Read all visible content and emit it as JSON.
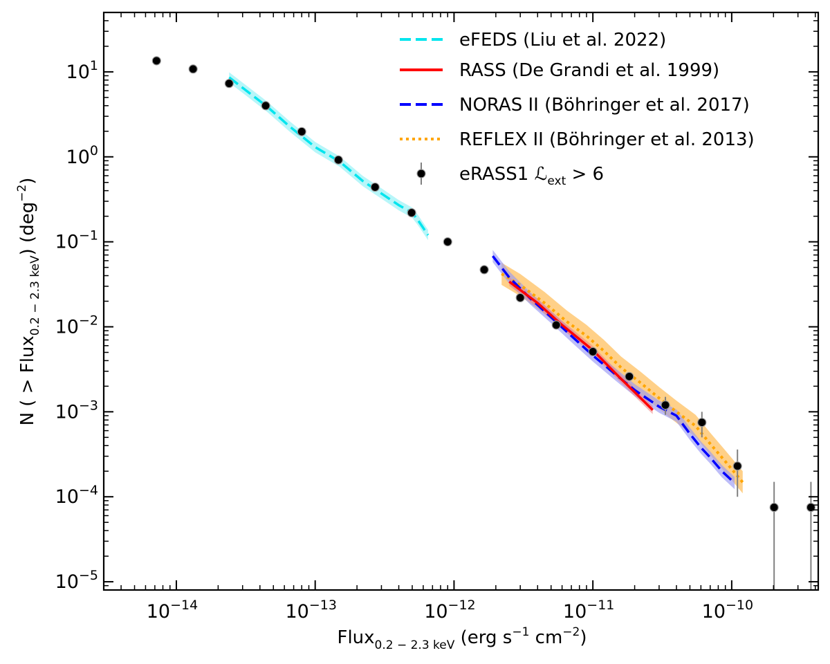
{
  "chart_data": {
    "type": "scatter",
    "xlabel": "Flux",
    "xlabel_sub": "0.2 − 2.3 keV",
    "xlabel_units": " (erg s",
    "xlabel_units_exp1": "−1",
    "xlabel_units_mid": " cm",
    "xlabel_units_exp2": "−2",
    "xlabel_units_end": ")",
    "ylabel_pre": "N ( > Flux",
    "ylabel_sub": "0.2 − 2.3 keV",
    "ylabel_mid": ") (deg",
    "ylabel_exp": "−2",
    "ylabel_end": ")",
    "xscale": "log",
    "yscale": "log",
    "xlim": [
      3e-15,
      4.2e-10
    ],
    "ylim": [
      8e-06,
      50
    ],
    "legend_position": "top-right",
    "x_ticks": [
      {
        "value": 1e-14,
        "base": "10",
        "exp": "−14"
      },
      {
        "value": 1e-13,
        "base": "10",
        "exp": "−13"
      },
      {
        "value": 1e-12,
        "base": "10",
        "exp": "−12"
      },
      {
        "value": 1e-11,
        "base": "10",
        "exp": "−11"
      },
      {
        "value": 1e-10,
        "base": "10",
        "exp": "−10"
      }
    ],
    "y_ticks": [
      {
        "value": 10,
        "base": "10",
        "exp": "1"
      },
      {
        "value": 1,
        "base": "10",
        "exp": "0"
      },
      {
        "value": 0.1,
        "base": "10",
        "exp": "−1"
      },
      {
        "value": 0.01,
        "base": "10",
        "exp": "−2"
      },
      {
        "value": 0.001,
        "base": "10",
        "exp": "−3"
      },
      {
        "value": 0.0001,
        "base": "10",
        "exp": "−4"
      },
      {
        "value": 1e-05,
        "base": "10",
        "exp": "−5"
      }
    ],
    "series": [
      {
        "name": "eFEDS (Liu et al. 2022)",
        "kind": "line",
        "color": "#00e5ee",
        "dash": "dashed",
        "band_factor": 1.15,
        "x": [
          2.4e-14,
          3e-14,
          4.5e-14,
          6.5e-14,
          1e-13,
          1.5e-13,
          2.2e-13,
          3e-13,
          4e-13,
          5e-13,
          5.5e-13,
          6.5e-13
        ],
        "y": [
          8.6,
          6.5,
          3.9,
          2.3,
          1.3,
          0.88,
          0.52,
          0.37,
          0.27,
          0.22,
          0.18,
          0.12
        ]
      },
      {
        "name": "RASS (De Grandi et al. 1999)",
        "kind": "line",
        "color": "#ff0000",
        "dash": "solid",
        "band_factor": 1.12,
        "x": [
          2.5e-12,
          4e-12,
          6e-12,
          1e-11,
          1.5e-11,
          2e-11,
          2.7e-11
        ],
        "y": [
          0.034,
          0.019,
          0.0105,
          0.0053,
          0.0027,
          0.0017,
          0.00105
        ]
      },
      {
        "name": "NORAS II (Böhringer et al. 2017)",
        "kind": "line",
        "color": "#0000ff",
        "dash": "dashed",
        "band_factor": 1.18,
        "x": [
          1.9e-12,
          2.5e-12,
          3.5e-12,
          5e-12,
          7e-12,
          1e-11,
          1.4e-11,
          2e-11,
          3e-11,
          4e-11,
          5e-11,
          6e-11,
          7e-11,
          8.5e-11,
          1.05e-10
        ],
        "y": [
          0.068,
          0.038,
          0.022,
          0.013,
          0.0078,
          0.0046,
          0.0029,
          0.0018,
          0.00115,
          0.0009,
          0.00055,
          0.00038,
          0.00029,
          0.0002,
          0.000145
        ]
      },
      {
        "name": "REFLEX II (Böhringer et al. 2013)",
        "kind": "line",
        "color": "#ffa500",
        "dash": "dotted",
        "band_factor": 1.35,
        "x": [
          2.2e-12,
          3e-12,
          4.5e-12,
          6.5e-12,
          9e-12,
          1.2e-11,
          1.6e-11,
          2.2e-11,
          3e-11,
          4e-11,
          5.5e-11,
          7e-11,
          9e-11,
          1.2e-10
        ],
        "y": [
          0.042,
          0.031,
          0.019,
          0.0115,
          0.0078,
          0.0052,
          0.0033,
          0.0022,
          0.00145,
          0.001,
          0.00068,
          0.00042,
          0.00026,
          0.000148
        ]
      },
      {
        "name": "eRASS1 ℒext > 6",
        "kind": "points",
        "color": "#000000",
        "x": [
          7.2e-15,
          1.32e-14,
          2.4e-14,
          4.4e-14,
          8e-14,
          1.47e-13,
          2.7e-13,
          4.95e-13,
          9e-13,
          1.65e-12,
          3e-12,
          5.45e-12,
          1e-11,
          1.83e-11,
          3.33e-11,
          6.1e-11,
          1.1e-10,
          2.02e-10,
          3.72e-10
        ],
        "y": [
          13.5,
          10.8,
          7.3,
          4.0,
          1.98,
          0.92,
          0.44,
          0.22,
          0.1,
          0.047,
          0.022,
          0.0105,
          0.0051,
          0.0026,
          0.0012,
          0.00075,
          0.00023,
          7.5e-05,
          7.5e-05
        ],
        "y_low": [
          null,
          null,
          null,
          null,
          null,
          null,
          null,
          null,
          null,
          null,
          null,
          null,
          null,
          null,
          0.00092,
          0.0005,
          0.0001,
          7.7e-06,
          7.7e-06
        ],
        "y_high": [
          null,
          null,
          null,
          null,
          null,
          null,
          null,
          null,
          null,
          null,
          null,
          null,
          null,
          null,
          0.0015,
          0.001,
          0.00036,
          0.00015,
          0.00015
        ]
      }
    ],
    "legend_entries": [
      {
        "label": "eFEDS (Liu et al. 2022)"
      },
      {
        "label": "RASS (De Grandi et al. 1999)"
      },
      {
        "label": "NORAS II (Böhringer et al. 2017)"
      },
      {
        "label": "REFLEX II (Böhringer et al. 2013)"
      },
      {
        "label_pre": "eRASS1 ",
        "label_script": "ℒ",
        "label_sub": "ext",
        "label_post": " > 6"
      }
    ],
    "colors": {
      "efeds_band": "#9ff3f7",
      "rass_band": "#f08080",
      "noras_band": "#9a9af5",
      "reflex_band": "#ffc060",
      "errorbar": "#808080",
      "axis": "#000000"
    }
  }
}
